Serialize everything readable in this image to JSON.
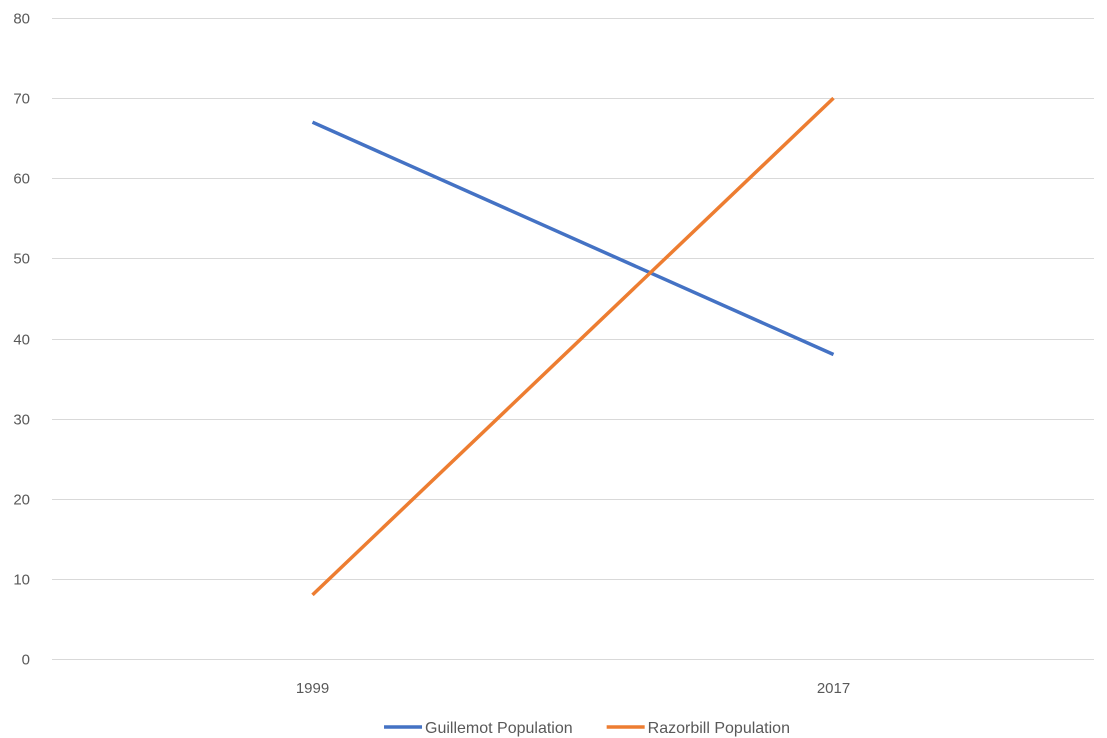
{
  "chart_data": {
    "type": "line",
    "x": [
      "1999",
      "2017"
    ],
    "series": [
      {
        "name": "Guillemot Population",
        "values": [
          67,
          38
        ],
        "color": "#4472c4"
      },
      {
        "name": "Razorbill Population",
        "values": [
          8,
          70
        ],
        "color": "#ed7d31"
      }
    ],
    "ylim": [
      0,
      80
    ],
    "yticks": [
      0,
      10,
      20,
      30,
      40,
      50,
      60,
      70,
      80
    ],
    "grid": true,
    "gridline_color": "#d9d9d9",
    "legend_position": "bottom"
  }
}
